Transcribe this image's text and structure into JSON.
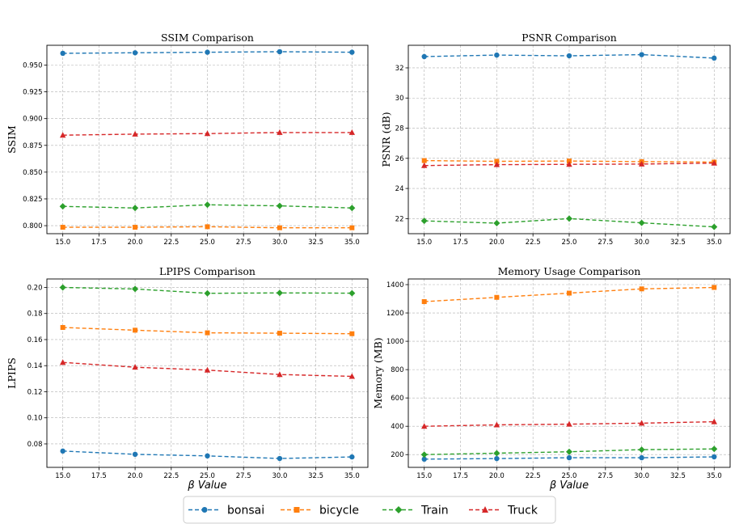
{
  "colors": {
    "bonsai": "#1f77b4",
    "bicycle": "#ff7f0e",
    "Train": "#2ca02c",
    "Truck": "#d62728"
  },
  "legend": {
    "items": [
      {
        "name": "bonsai",
        "marker": "circle"
      },
      {
        "name": "bicycle",
        "marker": "square"
      },
      {
        "name": "Train",
        "marker": "diamond"
      },
      {
        "name": "Truck",
        "marker": "triangle"
      }
    ],
    "placement": "bottom-center"
  },
  "chart_data": [
    {
      "type": "line",
      "title": "SSIM Comparison",
      "ylabel": "SSIM",
      "xlabel": "",
      "x": [
        15,
        20,
        25,
        30,
        35
      ],
      "xticks": [
        "15.0",
        "17.5",
        "20.0",
        "22.5",
        "25.0",
        "27.5",
        "30.0",
        "32.5",
        "35.0"
      ],
      "xtick_values": [
        15,
        17.5,
        20,
        22.5,
        25,
        27.5,
        30,
        32.5,
        35
      ],
      "xlim": [
        13.9,
        36.1
      ],
      "yticks": [
        "0.800",
        "0.825",
        "0.850",
        "0.875",
        "0.900",
        "0.925",
        "0.950"
      ],
      "ytick_values": [
        0.8,
        0.825,
        0.85,
        0.875,
        0.9,
        0.925,
        0.95
      ],
      "ylim": [
        0.7925,
        0.9685
      ],
      "grid": true,
      "series": [
        {
          "name": "bonsai",
          "values": [
            0.961,
            0.9615,
            0.962,
            0.9625,
            0.962
          ]
        },
        {
          "name": "bicycle",
          "values": [
            0.7985,
            0.7985,
            0.799,
            0.798,
            0.798
          ]
        },
        {
          "name": "Train",
          "values": [
            0.818,
            0.8165,
            0.8195,
            0.8185,
            0.8165
          ]
        },
        {
          "name": "Truck",
          "values": [
            0.8845,
            0.8855,
            0.886,
            0.887,
            0.887
          ]
        }
      ]
    },
    {
      "type": "line",
      "title": "PSNR Comparison",
      "ylabel": "PSNR (dB)",
      "xlabel": "",
      "x": [
        15,
        20,
        25,
        30,
        35
      ],
      "xticks": [
        "15.0",
        "17.5",
        "20.0",
        "22.5",
        "25.0",
        "27.5",
        "30.0",
        "32.5",
        "35.0"
      ],
      "xtick_values": [
        15,
        17.5,
        20,
        22.5,
        25,
        27.5,
        30,
        32.5,
        35
      ],
      "xlim": [
        13.9,
        36.1
      ],
      "yticks": [
        "22",
        "24",
        "26",
        "28",
        "30",
        "32"
      ],
      "ytick_values": [
        22,
        24,
        26,
        28,
        30,
        32
      ],
      "ylim": [
        21.0,
        33.5
      ],
      "grid": true,
      "series": [
        {
          "name": "bonsai",
          "values": [
            32.75,
            32.85,
            32.8,
            32.88,
            32.65
          ]
        },
        {
          "name": "bicycle",
          "values": [
            25.85,
            25.8,
            25.82,
            25.78,
            25.75
          ]
        },
        {
          "name": "Train",
          "values": [
            21.85,
            21.7,
            22.0,
            21.72,
            21.45
          ]
        },
        {
          "name": "Truck",
          "values": [
            25.52,
            25.58,
            25.6,
            25.62,
            25.68
          ]
        }
      ]
    },
    {
      "type": "line",
      "title": "LPIPS Comparison",
      "ylabel": "LPIPS",
      "xlabel": "β Value",
      "x": [
        15,
        20,
        25,
        30,
        35
      ],
      "xticks": [
        "15.0",
        "17.5",
        "20.0",
        "22.5",
        "25.0",
        "27.5",
        "30.0",
        "32.5",
        "35.0"
      ],
      "xtick_values": [
        15,
        17.5,
        20,
        22.5,
        25,
        27.5,
        30,
        32.5,
        35
      ],
      "xlim": [
        13.9,
        36.1
      ],
      "yticks": [
        "0.08",
        "0.10",
        "0.12",
        "0.14",
        "0.16",
        "0.18",
        "0.20"
      ],
      "ytick_values": [
        0.08,
        0.1,
        0.12,
        0.14,
        0.16,
        0.18,
        0.2
      ],
      "ylim": [
        0.062,
        0.2065
      ],
      "grid": true,
      "series": [
        {
          "name": "bonsai",
          "values": [
            0.0745,
            0.072,
            0.0708,
            0.0688,
            0.07
          ]
        },
        {
          "name": "bicycle",
          "values": [
            0.1693,
            0.1672,
            0.1652,
            0.1649,
            0.1645
          ]
        },
        {
          "name": "Train",
          "values": [
            0.2,
            0.1988,
            0.1955,
            0.1958,
            0.1956
          ]
        },
        {
          "name": "Truck",
          "values": [
            0.1425,
            0.1388,
            0.1366,
            0.1332,
            0.1318
          ]
        }
      ]
    },
    {
      "type": "line",
      "title": "Memory Usage Comparison",
      "ylabel": "Memory (MB)",
      "xlabel": "β Value",
      "x": [
        15,
        20,
        25,
        30,
        35
      ],
      "xticks": [
        "15.0",
        "17.5",
        "20.0",
        "22.5",
        "25.0",
        "27.5",
        "30.0",
        "32.5",
        "35.0"
      ],
      "xtick_values": [
        15,
        17.5,
        20,
        22.5,
        25,
        27.5,
        30,
        32.5,
        35
      ],
      "xlim": [
        13.9,
        36.1
      ],
      "yticks": [
        "200",
        "400",
        "600",
        "800",
        "1000",
        "1200",
        "1400"
      ],
      "ytick_values": [
        200,
        400,
        600,
        800,
        1000,
        1200,
        1400
      ],
      "ylim": [
        110,
        1440
      ],
      "grid": true,
      "series": [
        {
          "name": "bonsai",
          "values": [
            168,
            172,
            178,
            178,
            184
          ]
        },
        {
          "name": "bicycle",
          "values": [
            1280,
            1310,
            1340,
            1370,
            1380
          ]
        },
        {
          "name": "Train",
          "values": [
            200,
            210,
            220,
            235,
            240
          ]
        },
        {
          "name": "Truck",
          "values": [
            400,
            410,
            415,
            422,
            432
          ]
        }
      ]
    }
  ]
}
